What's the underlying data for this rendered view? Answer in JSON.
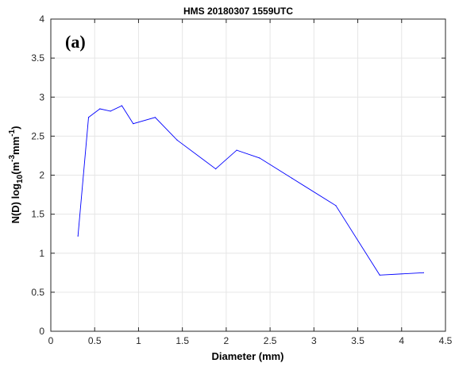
{
  "chart_data": {
    "type": "line",
    "title": "HMS 20180307  1559UTC",
    "panel_label": "(a)",
    "xlabel": "Diameter (mm)",
    "ylabel": {
      "prefix": "N(D) log",
      "sub1": "10",
      "mid1": "(m",
      "sup1": "-3",
      "mid2": "mm",
      "sup2": "-1",
      "suffix": ")"
    },
    "xlim": [
      0,
      4.5
    ],
    "ylim": [
      0,
      4
    ],
    "xticks": [
      "0",
      "0.5",
      "1",
      "1.5",
      "2",
      "2.5",
      "3",
      "3.5",
      "4",
      "4.5"
    ],
    "yticks": [
      "0",
      "0.5",
      "1",
      "1.5",
      "2",
      "2.5",
      "3",
      "3.5",
      "4"
    ],
    "grid": true,
    "line_color": "#0000ff",
    "series": [
      {
        "x": [
          0.31,
          0.43,
          0.56,
          0.68,
          0.81,
          0.94,
          1.19,
          1.44,
          1.88,
          2.12,
          2.38,
          2.75,
          3.25,
          3.75,
          4.25
        ],
        "y": [
          1.22,
          2.74,
          2.85,
          2.82,
          2.89,
          2.66,
          2.74,
          2.45,
          2.08,
          2.32,
          2.22,
          1.96,
          1.61,
          0.72,
          0.75
        ]
      }
    ]
  }
}
